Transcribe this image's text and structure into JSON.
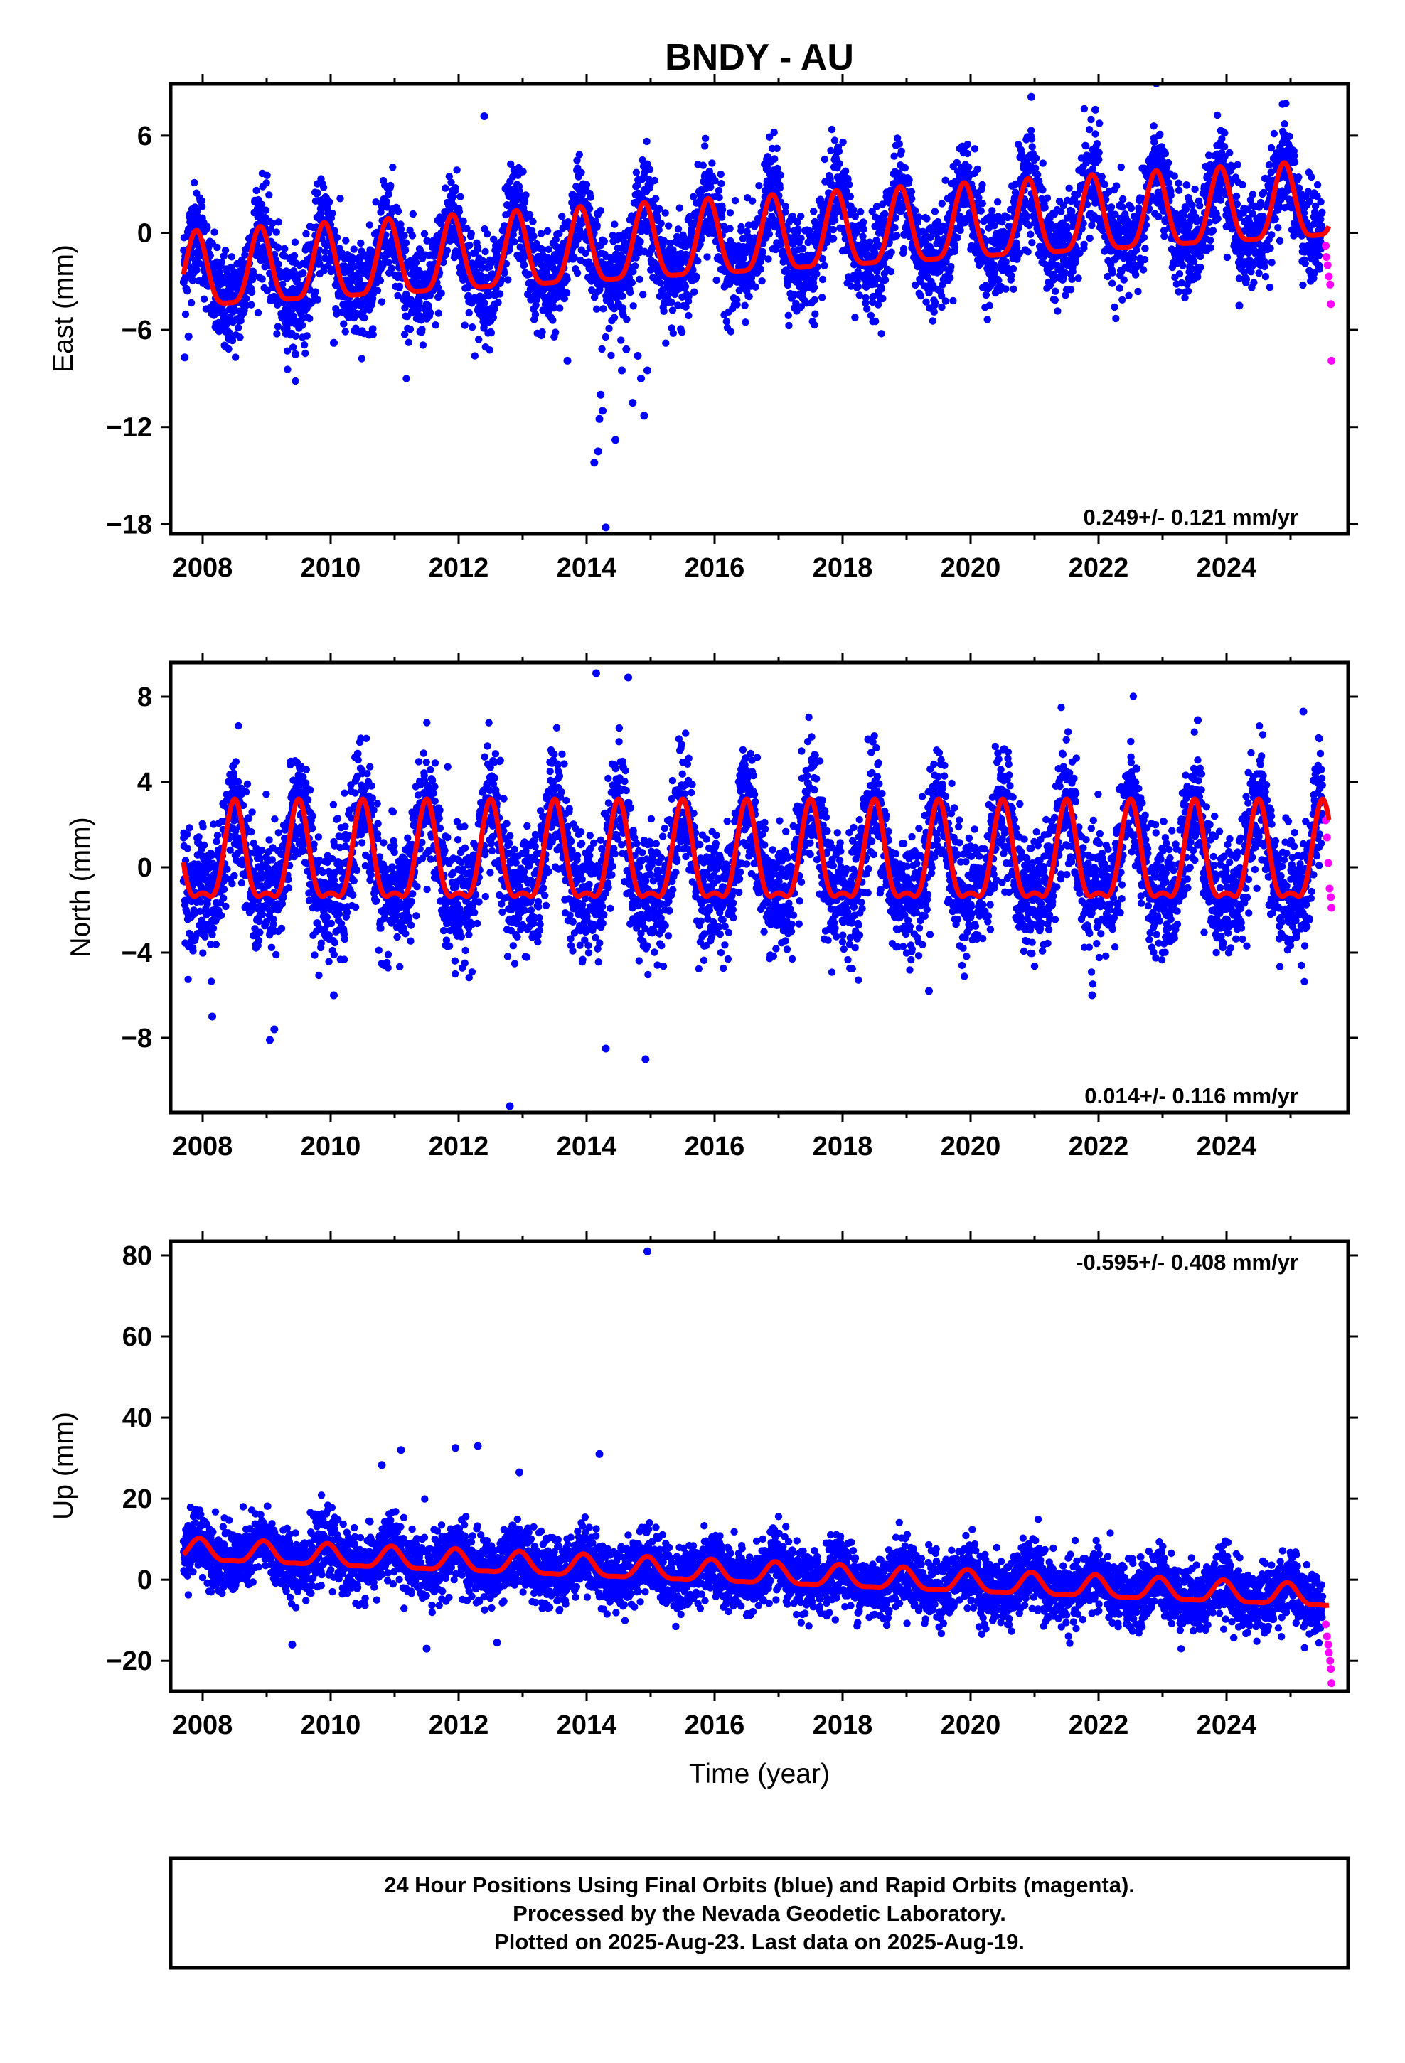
{
  "title": "BNDY - AU",
  "colors": {
    "final_orbits": "#0000ff",
    "rapid_orbits": "#ff00ff",
    "model_fit": "#ff0000",
    "frame": "#000000"
  },
  "x_axis": {
    "label": "Time (year)",
    "range": [
      2007.5,
      2025.9
    ],
    "ticks": [
      2008,
      2010,
      2012,
      2014,
      2016,
      2018,
      2020,
      2022,
      2024
    ],
    "tick_labels": [
      "2008",
      "2010",
      "2012",
      "2014",
      "2016",
      "2018",
      "2020",
      "2022",
      "2024"
    ]
  },
  "chart_data": [
    {
      "type": "scatter",
      "id": "east",
      "ylabel": "East (mm)",
      "ylim": [
        -18.6,
        9.2
      ],
      "yticks": [
        6,
        0,
        -6,
        -12,
        -18
      ],
      "ytick_labels": [
        "6",
        "0",
        "−6",
        "−12",
        "−18"
      ],
      "rate": "0.249+/- 0.121 mm/yr",
      "rate_position": "bottom-right",
      "model": {
        "start_year": 2007.7,
        "end_year": 2025.6,
        "start_offset": -2.8,
        "end_offset": 1.6,
        "annual_amplitude": 2.3,
        "annual_phase_peak": 0.9,
        "semiannual_amplitude": 0.6
      },
      "scatter_sd": 1.5,
      "series": [
        {
          "name": "Final Orbits",
          "color": "#0000ff",
          "x": [
            2007.72,
            2007.78,
            2008.35,
            2009.45,
            2010.05,
            2010.6,
            2012.4,
            2013.7,
            2014.12,
            2014.18,
            2014.2,
            2014.22,
            2014.25,
            2014.3,
            2014.45,
            2014.55,
            2014.62,
            2014.72,
            2014.8,
            2014.85,
            2014.9,
            2014.95,
            2020.95,
            2021.95,
            2024.2
          ],
          "y": [
            -7.7,
            -6.4,
            -7.0,
            -7.5,
            -6.8,
            -6.3,
            7.2,
            -7.9,
            -14.2,
            -13.5,
            -11.5,
            -10.0,
            -11.0,
            -18.2,
            -12.8,
            -8.5,
            -7.2,
            -10.5,
            -7.6,
            -9.0,
            -11.3,
            -8.5,
            8.4,
            7.6,
            -4.5
          ]
        },
        {
          "name": "Rapid Orbits",
          "color": "#ff00ff",
          "x": [
            2025.55,
            2025.56,
            2025.58,
            2025.6,
            2025.62,
            2025.63,
            2025.64
          ],
          "y": [
            -0.8,
            -1.5,
            -2.0,
            -2.7,
            -3.2,
            -4.4,
            -7.9
          ]
        }
      ]
    },
    {
      "type": "scatter",
      "id": "north",
      "ylabel": "North (mm)",
      "ylim": [
        -11.5,
        9.6
      ],
      "yticks": [
        8,
        4,
        0,
        -4,
        -8
      ],
      "ytick_labels": [
        "8",
        "4",
        "0",
        "−4",
        "−8"
      ],
      "rate": "0.014+/- 0.116 mm/yr",
      "rate_position": "bottom-right",
      "model": {
        "start_year": 2007.7,
        "end_year": 2025.6,
        "start_offset": 0.2,
        "end_offset": 0.2,
        "annual_amplitude": 2.2,
        "annual_phase_peak": 0.5,
        "semiannual_amplitude": 0.8
      },
      "scatter_sd": 1.4,
      "series": [
        {
          "name": "Final Orbits",
          "color": "#0000ff",
          "x": [
            2008.15,
            2009.05,
            2009.12,
            2010.05,
            2012.8,
            2014.15,
            2014.3,
            2014.65,
            2014.92,
            2018.4,
            2019.35,
            2021.9,
            2023.55,
            2025.2
          ],
          "y": [
            -7.0,
            -8.1,
            -7.6,
            -6.0,
            -11.2,
            9.1,
            -8.5,
            8.9,
            -9.0,
            6.0,
            -5.8,
            -6.0,
            6.9,
            7.3
          ]
        },
        {
          "name": "Rapid Orbits",
          "color": "#ff00ff",
          "x": [
            2025.55,
            2025.57,
            2025.59,
            2025.61,
            2025.63,
            2025.64
          ],
          "y": [
            2.2,
            1.4,
            0.2,
            -1.0,
            -1.4,
            -1.9
          ]
        }
      ]
    },
    {
      "type": "scatter",
      "id": "up",
      "ylabel": "Up (mm)",
      "ylim": [
        -27.5,
        83.5
      ],
      "yticks": [
        80,
        60,
        40,
        20,
        0,
        -20
      ],
      "ytick_labels": [
        "80",
        "60",
        "40",
        "20",
        "0",
        "−20"
      ],
      "rate": "-0.595+/- 0.408 mm/yr",
      "rate_position": "top-right",
      "model": {
        "start_year": 2007.7,
        "end_year": 2025.6,
        "start_offset": 7.0,
        "end_offset": -4.5,
        "annual_amplitude": 2.6,
        "annual_phase_peak": 0.95,
        "semiannual_amplitude": 0.8
      },
      "scatter_sd": 4.0,
      "series": [
        {
          "name": "Final Orbits",
          "color": "#0000ff",
          "x": [
            2010.8,
            2011.1,
            2011.95,
            2012.3,
            2012.95,
            2014.2,
            2014.95,
            2009.4,
            2011.5,
            2012.6
          ],
          "y": [
            28.3,
            32.0,
            32.5,
            33.0,
            26.5,
            31.0,
            81.0,
            -16.0,
            -17.0,
            -15.5
          ]
        },
        {
          "name": "Rapid Orbits",
          "color": "#ff00ff",
          "x": [
            2025.55,
            2025.57,
            2025.59,
            2025.6,
            2025.62,
            2025.63,
            2025.64
          ],
          "y": [
            -11.0,
            -14.0,
            -16.0,
            -18.0,
            -20.0,
            -22.0,
            -25.5
          ]
        }
      ]
    }
  ],
  "footer": {
    "line1": "24 Hour Positions Using Final Orbits (blue) and Rapid Orbits (magenta).",
    "line2": "Processed by the Nevada Geodetic Laboratory.",
    "line3": "Plotted on 2025-Aug-23. Last data on 2025-Aug-19."
  }
}
